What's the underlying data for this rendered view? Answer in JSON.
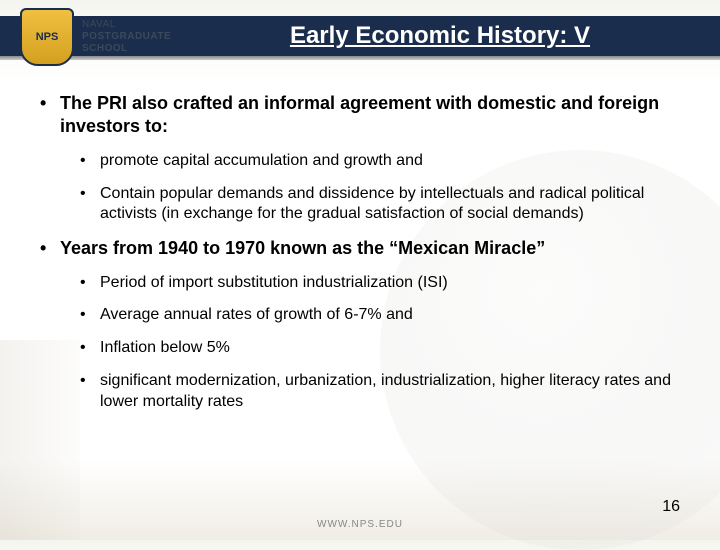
{
  "logo": {
    "line1": "NAVAL",
    "line2": "POSTGRADUATE",
    "line3": "SCHOOL"
  },
  "title": "Early Economic History: V",
  "bullets": [
    {
      "text": "The PRI also crafted an informal agreement with domestic and foreign investors to:",
      "children": [
        {
          "text": "promote capital accumulation and growth and"
        },
        {
          "text": "Contain popular demands and dissidence by intellectuals and radical political activists (in exchange for the gradual satisfaction of social demands)"
        }
      ]
    },
    {
      "text": "Years from 1940 to 1970 known as the “Mexican Miracle”",
      "children": [
        {
          "text": "Period of import substitution industrialization (ISI)"
        },
        {
          "text": "Average annual rates of growth of 6-7% and"
        },
        {
          "text": "Inflation below 5%"
        },
        {
          "text": "significant modernization, urbanization, industrialization, higher literacy rates and lower mortality rates"
        }
      ]
    }
  ],
  "footer_url": "WWW.NPS.EDU",
  "page_number": "16",
  "colors": {
    "title_bar_bg": "#1a2d4d",
    "title_text": "#ffffff",
    "body_text": "#000000",
    "shield_gold": "#f0c040"
  }
}
